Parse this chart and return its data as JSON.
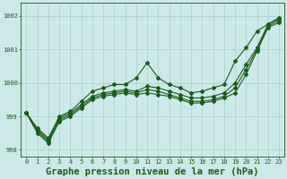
{
  "background_color": "#cde8e8",
  "grid_color": "#aacccc",
  "line_color": "#1a5c1a",
  "title": "Graphe pression niveau de la mer (hPa)",
  "xlim": [
    -0.5,
    23.5
  ],
  "ylim": [
    997.8,
    1002.4
  ],
  "yticks": [
    998,
    999,
    1000,
    1001,
    1002
  ],
  "xticks": [
    0,
    1,
    2,
    3,
    4,
    5,
    6,
    7,
    8,
    9,
    10,
    11,
    12,
    13,
    14,
    15,
    16,
    17,
    18,
    19,
    20,
    21,
    22,
    23
  ],
  "series": [
    [
      999.1,
      998.65,
      998.35,
      999.0,
      999.15,
      999.45,
      999.75,
      999.85,
      999.95,
      999.95,
      1000.15,
      1000.6,
      1000.15,
      999.95,
      999.85,
      999.7,
      999.75,
      999.85,
      999.95,
      1000.65,
      1001.05,
      1001.55,
      1001.75,
      1001.95
    ],
    [
      999.1,
      998.6,
      998.3,
      998.95,
      999.1,
      999.35,
      999.6,
      999.7,
      999.75,
      999.8,
      999.75,
      999.9,
      999.85,
      999.75,
      999.65,
      999.55,
      999.55,
      999.6,
      999.7,
      1000.0,
      1000.55,
      1001.05,
      1001.75,
      1001.9
    ],
    [
      999.1,
      998.55,
      998.25,
      998.9,
      999.05,
      999.3,
      999.55,
      999.65,
      999.7,
      999.75,
      999.7,
      999.8,
      999.75,
      999.65,
      999.55,
      999.45,
      999.45,
      999.5,
      999.6,
      999.85,
      1000.4,
      1001.0,
      1001.7,
      1001.85
    ],
    [
      999.1,
      998.5,
      998.2,
      998.85,
      999.0,
      999.25,
      999.5,
      999.6,
      999.65,
      999.7,
      999.65,
      999.7,
      999.65,
      999.6,
      999.5,
      999.4,
      999.4,
      999.45,
      999.55,
      999.7,
      1000.25,
      1000.95,
      1001.65,
      1001.8
    ]
  ],
  "marker": "D",
  "marker_size": 2.0,
  "linewidth": 0.8,
  "title_fontsize": 7.5,
  "tick_fontsize": 5.0
}
